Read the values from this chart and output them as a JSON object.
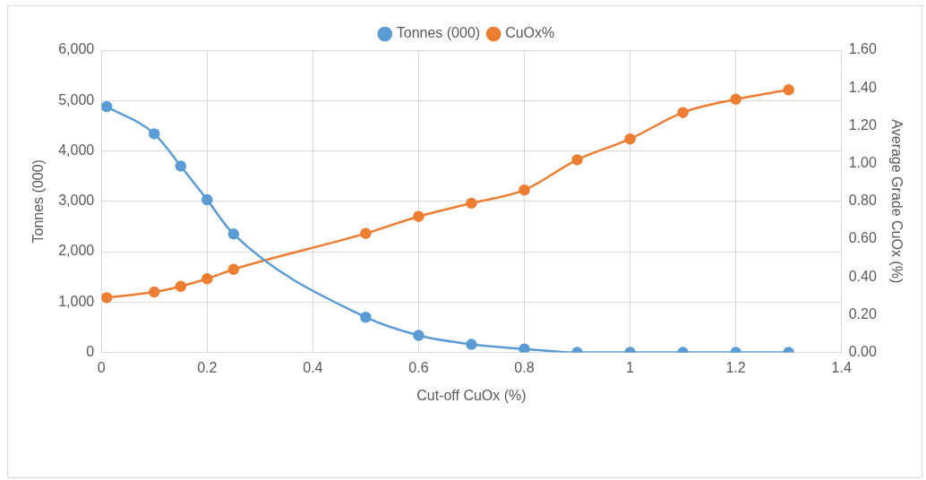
{
  "chart_data": {
    "type": "line",
    "xlabel": "Cut-off CuOx (%)",
    "ylabel": "Tonnes (000)",
    "y2label": "Average Grade CuOx (%)",
    "x": [
      0.01,
      0.1,
      0.15,
      0.2,
      0.25,
      0.5,
      0.6,
      0.7,
      0.8,
      0.9,
      1,
      1.1,
      1.2,
      1.3
    ],
    "series": [
      {
        "name": "Tonnes (000)",
        "color": "#5b9bd5",
        "values": [
          4880,
          4340,
          3700,
          3030,
          2350,
          700,
          340,
          160,
          70,
          0,
          0,
          0,
          0,
          0
        ]
      },
      {
        "name": "CuOx%",
        "color": "#ed7d31",
        "axis": "y2",
        "values": [
          0.29,
          0.32,
          0.35,
          0.39,
          0.44,
          0.63,
          0.72,
          0.79,
          0.86,
          1.02,
          1.13,
          1.27,
          1.34,
          1.39
        ]
      }
    ],
    "xlim": [
      0,
      1.4
    ],
    "xticks": [
      0,
      0.2,
      0.4,
      0.6,
      0.8,
      1,
      1.2,
      1.4
    ],
    "ylim": [
      0,
      6000
    ],
    "yticks": [
      {
        "value": 0,
        "label": "0"
      },
      {
        "value": 1000,
        "label": "1,000"
      },
      {
        "value": 2000,
        "label": "2,000"
      },
      {
        "value": 3000,
        "label": "3,000"
      },
      {
        "value": 4000,
        "label": "4,000"
      },
      {
        "value": 5000,
        "label": "5,000"
      },
      {
        "value": 6000,
        "label": "6,000"
      }
    ],
    "y2lim": [
      0,
      1.6
    ],
    "y2ticks": [
      {
        "value": 0,
        "label": "0.00"
      },
      {
        "value": 0.2,
        "label": "0.20"
      },
      {
        "value": 0.4,
        "label": "0.40"
      },
      {
        "value": 0.6,
        "label": "0.60"
      },
      {
        "value": 0.8,
        "label": "0.80"
      },
      {
        "value": 1,
        "label": "1.00"
      },
      {
        "value": 1.2,
        "label": "1.20"
      },
      {
        "value": 1.4,
        "label": "1.40"
      },
      {
        "value": 1.6,
        "label": "1.60"
      }
    ],
    "grid": true,
    "legend": "top",
    "marker": "circle",
    "line_style": "solid"
  }
}
